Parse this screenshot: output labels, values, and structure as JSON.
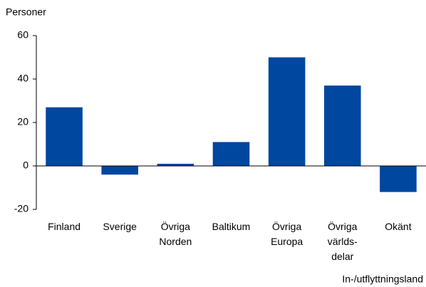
{
  "chart_data": {
    "type": "bar",
    "y_label": "Personer",
    "x_label": "In-/utflyttningsland",
    "categories": [
      "Finland",
      "Sverige",
      "Övriga\nNorden",
      "Baltikum",
      "Övriga\nEuropa",
      "Övriga\nvärlds-\ndelar",
      "Okänt"
    ],
    "values": [
      27,
      -4,
      1,
      11,
      50,
      37,
      -12
    ],
    "color": "#0047a0",
    "ylim": [
      -20,
      60
    ],
    "yticks": [
      -20,
      0,
      20,
      40,
      60
    ],
    "grid": false
  }
}
